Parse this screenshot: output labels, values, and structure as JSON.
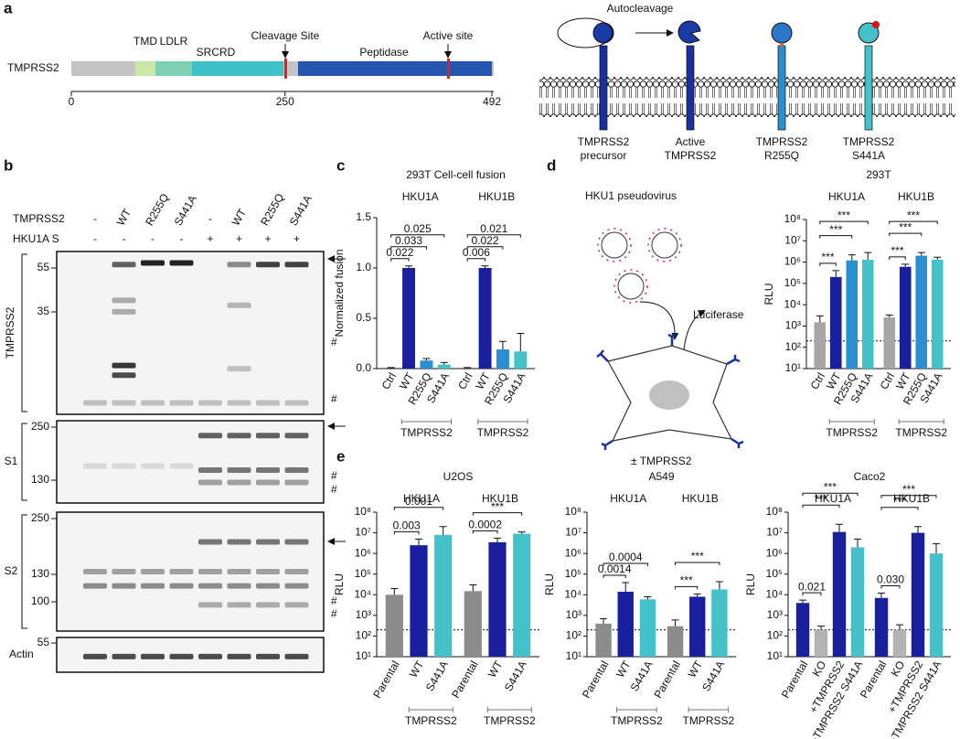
{
  "panels": [
    "a",
    "b",
    "c",
    "d",
    "e"
  ],
  "domain_map": {
    "protein": "TMPRSS2",
    "domains": [
      "TMD",
      "LDLR",
      "SRCRD",
      "Peptidase"
    ],
    "sites": [
      "Cleavage Site",
      "Active site"
    ],
    "xlim": [
      0,
      492
    ],
    "ticks": [
      0,
      250,
      492
    ]
  },
  "activation_diagram": {
    "process": "Autocleavage",
    "forms": [
      [
        "TMPRSS2",
        "precursor"
      ],
      [
        "Active",
        "TMPRSS2"
      ],
      [
        "TMPRSS2",
        "R255Q"
      ],
      [
        "TMPRSS2",
        "S441A"
      ]
    ]
  },
  "western_blot": {
    "lane_headers": [
      {
        "label": "TMPRSS2",
        "lanes": [
          "-",
          "WT",
          "R255Q",
          "S441A",
          "-",
          "WT",
          "R255Q",
          "S441A"
        ]
      },
      {
        "label": "HKU1A S",
        "lanes": [
          "-",
          "-",
          "-",
          "-",
          "+",
          "+",
          "+",
          "+"
        ]
      }
    ],
    "blots": [
      {
        "label": "TMPRSS2",
        "markers": [
          55,
          35
        ],
        "annotations": [
          "#",
          "#"
        ]
      },
      {
        "label": "S1",
        "markers": [
          250,
          130
        ],
        "annotations": [
          "#",
          "#"
        ]
      },
      {
        "label": "S2",
        "markers": [
          250,
          130,
          100
        ],
        "annotations": [
          "#",
          "#"
        ]
      },
      {
        "label": "Actin",
        "markers": [
          55
        ],
        "annotations": []
      }
    ]
  },
  "pseudovirus_diagram": {
    "virus": "HKU1 pseudovirus",
    "reporter": "Luciferase",
    "condition": "± TMPRSS2"
  },
  "chart_data": [
    {
      "type": "bar",
      "title": "293T Cell-cell fusion",
      "ylabel": "Normalized fusion",
      "log": false,
      "ylim": [
        0,
        1.5
      ],
      "yticks": [
        {
          "value": 0,
          "label": "0.0"
        },
        0.5,
        {
          "value": 1,
          "label": "1.0"
        },
        1.5
      ],
      "groups": [
        {
          "title": "HKU1A",
          "categories": [
            "Ctrl",
            "WT",
            "R255Q",
            "S441A"
          ],
          "values": [
            0.0,
            1.0,
            0.08,
            0.04
          ],
          "errors": [
            0.01,
            0.02,
            0.02,
            0.02
          ],
          "colors": [
            "#a6a6a6",
            "#1a1f9e",
            "#2a8fd0",
            "#45c2c9"
          ],
          "comparisons": [
            "0.022",
            "0.033",
            "0.025"
          ],
          "bracket": "TMPRSS2"
        },
        {
          "title": "HKU1B",
          "categories": [
            "Ctrl",
            "WT",
            "R255Q",
            "S441A"
          ],
          "values": [
            0.0,
            1.0,
            0.19,
            0.17
          ],
          "errors": [
            0.01,
            0.02,
            0.08,
            0.18
          ],
          "colors": [
            "#a6a6a6",
            "#1a1f9e",
            "#2a8fd0",
            "#45c2c9"
          ],
          "comparisons": [
            "0.006",
            "0.022",
            "0.021"
          ],
          "bracket": "TMPRSS2"
        }
      ]
    },
    {
      "type": "bar",
      "title": "293T",
      "ylabel": "RLU",
      "log": true,
      "threshold": 200,
      "ylim": [
        10,
        100000000
      ],
      "yticks": [
        {
          "value": 10,
          "label": "10¹"
        },
        {
          "value": 100,
          "label": "10²"
        },
        {
          "value": 1000,
          "label": "10³"
        },
        {
          "value": 10000,
          "label": "10⁴"
        },
        {
          "value": 100000,
          "label": "10⁵"
        },
        {
          "value": 1000000,
          "label": "10⁶"
        },
        {
          "value": 10000000,
          "label": "10⁷"
        },
        {
          "value": 100000000,
          "label": "10⁸"
        }
      ],
      "groups": [
        {
          "title": "HKU1A",
          "categories": [
            "Ctrl",
            "WT",
            "R255Q",
            "S441A"
          ],
          "values": [
            1500,
            200000,
            1200000,
            1300000
          ],
          "errors": [
            1500,
            200000,
            1000000,
            1500000
          ],
          "colors": [
            "#a6a6a6",
            "#1a1f9e",
            "#2a8fd0",
            "#45c2c9"
          ],
          "comparisons": [
            "***",
            "***",
            "***"
          ],
          "bracket": "TMPRSS2"
        },
        {
          "title": "HKU1B",
          "categories": [
            "Ctrl",
            "WT",
            "R255Q",
            "S441A"
          ],
          "values": [
            2500,
            600000,
            2000000,
            1300000
          ],
          "errors": [
            800,
            200000,
            800000,
            400000
          ],
          "colors": [
            "#a6a6a6",
            "#1a1f9e",
            "#2a8fd0",
            "#45c2c9"
          ],
          "comparisons": [
            "***",
            "***",
            "***"
          ],
          "bracket": "TMPRSS2"
        }
      ]
    },
    {
      "type": "bar",
      "title": "U2OS",
      "ylabel": "RLU",
      "log": true,
      "threshold": 200,
      "ylim": [
        10,
        100000000
      ],
      "yticks": [
        {
          "value": 10,
          "label": "10¹"
        },
        {
          "value": 100,
          "label": "10²"
        },
        {
          "value": 1000,
          "label": "10³"
        },
        {
          "value": 10000,
          "label": "10⁴"
        },
        {
          "value": 100000,
          "label": "10⁵"
        },
        {
          "value": 1000000,
          "label": "10⁶"
        },
        {
          "value": 10000000,
          "label": "10⁷"
        },
        {
          "value": 100000000,
          "label": "10⁸"
        }
      ],
      "groups": [
        {
          "title": "HKU1A",
          "categories": [
            "Parental",
            "WT",
            "S441A"
          ],
          "values": [
            10000,
            2500000,
            8000000
          ],
          "errors": [
            10000,
            2500000,
            12000000
          ],
          "colors": [
            "#8c8c8c",
            "#1a1f9e",
            "#45c2c9"
          ],
          "comparisons": [
            "0.003",
            "0.001"
          ],
          "bracket": "TMPRSS2"
        },
        {
          "title": "HKU1B",
          "categories": [
            "Parental",
            "WT",
            "S441A"
          ],
          "values": [
            15000,
            3500000,
            9000000
          ],
          "errors": [
            15000,
            2000000,
            2000000
          ],
          "colors": [
            "#8c8c8c",
            "#1a1f9e",
            "#45c2c9"
          ],
          "comparisons": [
            "0.0002",
            "***"
          ],
          "bracket": "TMPRSS2"
        }
      ]
    },
    {
      "type": "bar",
      "title": "A549",
      "ylabel": "RLU",
      "log": true,
      "threshold": 200,
      "ylim": [
        10,
        100000000
      ],
      "yticks": [
        {
          "value": 10,
          "label": "10¹"
        },
        {
          "value": 100,
          "label": "10²"
        },
        {
          "value": 1000,
          "label": "10³"
        },
        {
          "value": 10000,
          "label": "10⁴"
        },
        {
          "value": 100000,
          "label": "10⁵"
        },
        {
          "value": 1000000,
          "label": "10⁶"
        },
        {
          "value": 10000000,
          "label": "10⁷"
        },
        {
          "value": 100000000,
          "label": "10⁸"
        }
      ],
      "groups": [
        {
          "title": "HKU1A",
          "categories": [
            "Parental",
            "WT",
            "S441A"
          ],
          "values": [
            400,
            14000,
            6000
          ],
          "errors": [
            300,
            25000,
            2000
          ],
          "colors": [
            "#8c8c8c",
            "#1a1f9e",
            "#45c2c9"
          ],
          "comparisons": [
            "0.0014",
            "0.0004"
          ],
          "bracket": "TMPRSS2"
        },
        {
          "title": "HKU1B",
          "categories": [
            "Parental",
            "WT",
            "S441A"
          ],
          "values": [
            300,
            8000,
            18000
          ],
          "errors": [
            300,
            3000,
            25000
          ],
          "colors": [
            "#8c8c8c",
            "#1a1f9e",
            "#45c2c9"
          ],
          "comparisons": [
            "***",
            "***"
          ],
          "bracket": "TMPRSS2"
        }
      ]
    },
    {
      "type": "bar",
      "title": "Caco2",
      "ylabel": "RLU",
      "log": true,
      "threshold": 200,
      "ylim": [
        10,
        100000000
      ],
      "yticks": [
        {
          "value": 10,
          "label": "10¹"
        },
        {
          "value": 100,
          "label": "10²"
        },
        {
          "value": 1000,
          "label": "10³"
        },
        {
          "value": 10000,
          "label": "10⁴"
        },
        {
          "value": 100000,
          "label": "10⁵"
        },
        {
          "value": 1000000,
          "label": "10⁶"
        },
        {
          "value": 10000000,
          "label": "10⁷"
        },
        {
          "value": 100000000,
          "label": "10⁸"
        }
      ],
      "groups": [
        {
          "title": "HKU1A",
          "categories": [
            "Parental",
            "KO",
            "+TMPRSS2",
            "+TMPRSS2 S441A"
          ],
          "values": [
            4000,
            200,
            11000000,
            2000000
          ],
          "errors": [
            1500,
            100,
            15000000,
            3000000
          ],
          "colors": [
            "#1a1f9e",
            "#b3b3b3",
            "#1a1f9e",
            "#45c2c9"
          ],
          "comparisons": [
            "0.021",
            "***",
            "***"
          ]
        },
        {
          "title": "HKU1B",
          "categories": [
            "Parental",
            "KO",
            "+TMPRSS2",
            "+TMPRSS2 S441A"
          ],
          "values": [
            7000,
            200,
            10000000,
            1000000
          ],
          "errors": [
            5000,
            150,
            10000000,
            2000000
          ],
          "colors": [
            "#1a1f9e",
            "#b3b3b3",
            "#1a1f9e",
            "#45c2c9"
          ],
          "comparisons": [
            "0.030",
            "***",
            "***"
          ]
        }
      ]
    }
  ]
}
